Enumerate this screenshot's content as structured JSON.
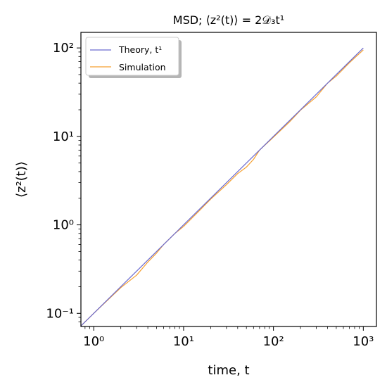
{
  "chart_data": {
    "type": "line",
    "title": "MSD; ⟨z²(t)⟩ = 2𝒟₃t¹",
    "xlabel": "time, t",
    "ylabel": "⟨z²(t)⟩",
    "xscale": "log",
    "yscale": "log",
    "xlim": [
      0.72,
      1400
    ],
    "ylim": [
      0.071,
      150
    ],
    "xticks": [
      {
        "value": 1,
        "label": "10⁰"
      },
      {
        "value": 10,
        "label": "10¹"
      },
      {
        "value": 100,
        "label": "10²"
      },
      {
        "value": 1000,
        "label": "10³"
      }
    ],
    "yticks": [
      {
        "value": 0.1,
        "label": "10⁻¹"
      },
      {
        "value": 1,
        "label": "10⁰"
      },
      {
        "value": 10,
        "label": "10¹"
      },
      {
        "value": 100,
        "label": "10²"
      }
    ],
    "grid": false,
    "legend": {
      "placement": "top-left",
      "entries": [
        {
          "label": "Theory, t¹",
          "color": "#6a6acf"
        },
        {
          "label": "Simulation",
          "color": "#f5a030"
        }
      ]
    },
    "series": [
      {
        "name": "Theory, t¹",
        "color": "#6a6acf",
        "x": [
          0.72,
          1,
          2,
          5,
          10,
          20,
          50,
          100,
          200,
          500,
          1000
        ],
        "y": [
          0.072,
          0.1,
          0.2,
          0.5,
          1.0,
          2.0,
          5.0,
          10,
          20,
          50,
          100
        ]
      },
      {
        "name": "Simulation",
        "color": "#f5a030",
        "x": [
          0.72,
          1,
          1.5,
          2,
          3,
          4,
          5,
          6,
          8,
          10,
          15,
          20,
          30,
          40,
          50,
          60,
          70,
          100,
          150,
          200,
          300,
          400,
          500,
          700,
          1000
        ],
        "y": [
          0.072,
          0.1,
          0.148,
          0.195,
          0.27,
          0.38,
          0.48,
          0.6,
          0.8,
          0.96,
          1.45,
          1.95,
          2.85,
          3.8,
          4.5,
          5.5,
          7.0,
          9.8,
          14.5,
          19.8,
          28,
          40,
          48,
          68,
          95
        ]
      }
    ]
  },
  "colors": {
    "theory": "#6a6acf",
    "simulation": "#f5a030"
  }
}
